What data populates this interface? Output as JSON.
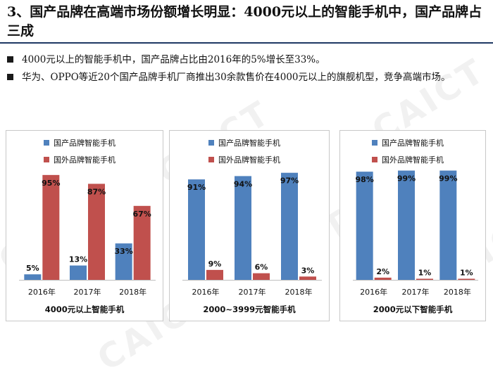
{
  "title": "3、国产品牌在高端市场份额增长明显：4000元以上的智能手机中，国产品牌占三成",
  "bullets": [
    "4000元以上的智能手机中，国产品牌占比由2016年的5%增长至33%。",
    "华为、OPPO等近20个国产品牌手机厂商推出30余款售价在4000元以上的旗舰机型，竞争高端市场。"
  ],
  "watermark": "CAICT",
  "colors": {
    "domestic": "#4f81bd",
    "foreign": "#c0504d"
  },
  "chart_data": [
    {
      "type": "bar",
      "caption": "4000元以上智能手机",
      "categories": [
        "2016年",
        "2017年",
        "2018年"
      ],
      "series": [
        {
          "name": "国产品牌智能手机",
          "values": [
            5,
            13,
            33
          ],
          "labels": [
            "5%",
            "13%",
            "33%"
          ]
        },
        {
          "name": "国外品牌智能手机",
          "values": [
            95,
            87,
            67
          ],
          "labels": [
            "95%",
            "87%",
            "67%"
          ]
        }
      ],
      "ylim": [
        0,
        100
      ],
      "legend": "top-center",
      "grid": false
    },
    {
      "type": "bar",
      "caption": "2000~3999元智能手机",
      "categories": [
        "2016年",
        "2017年",
        "2018年"
      ],
      "series": [
        {
          "name": "国产品牌智能手机",
          "values": [
            91,
            94,
            97
          ],
          "labels": [
            "91%",
            "94%",
            "97%"
          ]
        },
        {
          "name": "国外品牌智能手机",
          "values": [
            9,
            6,
            3
          ],
          "labels": [
            "9%",
            "6%",
            "3%"
          ]
        }
      ],
      "ylim": [
        0,
        100
      ],
      "legend": "top-center",
      "grid": false
    },
    {
      "type": "bar",
      "caption": "2000元以下智能手机",
      "categories": [
        "2016年",
        "2017年",
        "2018年"
      ],
      "series": [
        {
          "name": "国产品牌智能手机",
          "values": [
            98,
            99,
            99
          ],
          "labels": [
            "98%",
            "99%",
            "99%"
          ]
        },
        {
          "name": "国外品牌智能手机",
          "values": [
            2,
            1,
            1
          ],
          "labels": [
            "2%",
            "1%",
            "1%"
          ]
        }
      ],
      "ylim": [
        0,
        100
      ],
      "legend": "top-center",
      "grid": false
    }
  ]
}
